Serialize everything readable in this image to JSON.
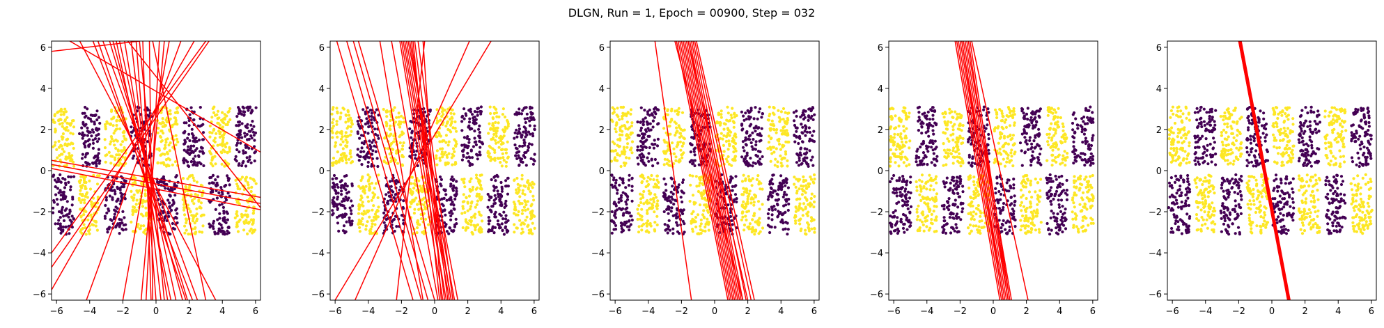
{
  "figure": {
    "title": "DLGN, Run = 1, Epoch = 00900, Step = 032"
  },
  "colors": {
    "class_a": "#fde725",
    "class_b": "#440154",
    "line": "#ff0000",
    "axes": "#000000",
    "background": "#ffffff"
  },
  "chart_data": [
    {
      "type": "scatter",
      "title": "",
      "xlabel": "",
      "ylabel": "",
      "xlim": [
        -6.3,
        6.3
      ],
      "ylim": [
        -6.3,
        6.3
      ],
      "xticks": [
        -6,
        -4,
        -2,
        0,
        2,
        4,
        6
      ],
      "yticks": [
        -6,
        -4,
        -2,
        0,
        2,
        4,
        6
      ],
      "xtick_labels": [
        "−6",
        "−4",
        "−2",
        "0",
        "2",
        "4",
        "6"
      ],
      "ytick_labels": [
        "−6",
        "−4",
        "−2",
        "0",
        "2",
        "4",
        "6"
      ],
      "grid": false,
      "background_points": {
        "x_range": [
          -6.3,
          6.3
        ],
        "y_range": [
          -3.1,
          3.1
        ],
        "stripe_width": 1.57,
        "pattern": "checkerboard",
        "top_row_first_stripe": "class_a",
        "bottom_row_first_stripe": "class_b"
      },
      "lines": [
        {
          "x1": -6.3,
          "y1": 5.8,
          "x2": -1.0,
          "y2": 6.3
        },
        {
          "x1": -6.3,
          "y1": 0.3,
          "x2": 6.3,
          "y2": -1.6
        },
        {
          "x1": -6.3,
          "y1": 0.1,
          "x2": 6.3,
          "y2": -1.9
        },
        {
          "x1": -6.3,
          "y1": -4.7,
          "x2": 3.2,
          "y2": 6.3
        },
        {
          "x1": -6.3,
          "y1": -5.8,
          "x2": 2.3,
          "y2": 6.3
        },
        {
          "x1": -5.2,
          "y1": 6.3,
          "x2": 6.3,
          "y2": 0.9
        },
        {
          "x1": -4.6,
          "y1": 6.3,
          "x2": 3.6,
          "y2": -6.3
        },
        {
          "x1": -3.8,
          "y1": 6.3,
          "x2": 2.2,
          "y2": -6.3
        },
        {
          "x1": -3.2,
          "y1": 6.3,
          "x2": 2.5,
          "y2": -6.3
        },
        {
          "x1": -2.6,
          "y1": 6.3,
          "x2": 1.6,
          "y2": -6.3
        },
        {
          "x1": -2.2,
          "y1": 6.3,
          "x2": 1.2,
          "y2": -6.3
        },
        {
          "x1": -1.9,
          "y1": 6.3,
          "x2": 0.7,
          "y2": -6.3
        },
        {
          "x1": -1.5,
          "y1": 6.3,
          "x2": 0.3,
          "y2": -6.3
        },
        {
          "x1": -1.2,
          "y1": 6.3,
          "x2": 0.0,
          "y2": -6.3
        },
        {
          "x1": -0.8,
          "y1": 6.3,
          "x2": -0.3,
          "y2": -6.3
        },
        {
          "x1": -0.4,
          "y1": 6.3,
          "x2": -0.2,
          "y2": -6.3
        },
        {
          "x1": 0.2,
          "y1": 6.3,
          "x2": -0.6,
          "y2": -6.3
        },
        {
          "x1": 0.8,
          "y1": 6.3,
          "x2": -2.0,
          "y2": -6.3
        },
        {
          "x1": 1.5,
          "y1": 6.3,
          "x2": -4.2,
          "y2": -6.3
        },
        {
          "x1": -3.5,
          "y1": 6.3,
          "x2": 1.8,
          "y2": -6.3
        },
        {
          "x1": -2.4,
          "y1": 6.3,
          "x2": 0.9,
          "y2": -6.3
        },
        {
          "x1": -1.0,
          "y1": 6.3,
          "x2": 0.5,
          "y2": -6.3
        },
        {
          "x1": 0.5,
          "y1": 6.3,
          "x2": -0.9,
          "y2": -6.3
        },
        {
          "x1": -1.7,
          "y1": 6.3,
          "x2": 6.3,
          "y2": -1.8
        },
        {
          "x1": -2.8,
          "y1": 6.3,
          "x2": 1.9,
          "y2": -6.3
        },
        {
          "x1": -0.2,
          "y1": 6.3,
          "x2": 3.0,
          "y2": -6.3
        },
        {
          "x1": 3.0,
          "y1": 6.3,
          "x2": -6.3,
          "y2": -4.0
        },
        {
          "x1": -6.3,
          "y1": 0.5,
          "x2": 6.3,
          "y2": -1.3
        }
      ]
    },
    {
      "type": "scatter",
      "title": "",
      "xlabel": "",
      "ylabel": "",
      "xlim": [
        -6.3,
        6.3
      ],
      "ylim": [
        -6.3,
        6.3
      ],
      "xticks": [
        -6,
        -4,
        -2,
        0,
        2,
        4,
        6
      ],
      "yticks": [
        -6,
        -4,
        -2,
        0,
        2,
        4,
        6
      ],
      "xtick_labels": [
        "−6",
        "−4",
        "−2",
        "0",
        "2",
        "4",
        "6"
      ],
      "ytick_labels": [
        "−6",
        "−4",
        "−2",
        "0",
        "2",
        "4",
        "6"
      ],
      "grid": false,
      "background_points": {
        "x_range": [
          -6.3,
          6.3
        ],
        "y_range": [
          -3.1,
          3.1
        ],
        "stripe_width": 1.57,
        "pattern": "checkerboard",
        "top_row_first_stripe": "class_a",
        "bottom_row_first_stripe": "class_b"
      },
      "lines": [
        {
          "x1": -5.9,
          "y1": 6.3,
          "x2": -1.3,
          "y2": -6.3
        },
        {
          "x1": -5.3,
          "y1": 6.3,
          "x2": -0.8,
          "y2": -6.3
        },
        {
          "x1": -4.9,
          "y1": 6.3,
          "x2": -0.4,
          "y2": -6.3
        },
        {
          "x1": -4.6,
          "y1": 6.3,
          "x2": 0.0,
          "y2": -6.3
        },
        {
          "x1": -2.1,
          "y1": 6.3,
          "x2": 0.5,
          "y2": -6.3
        },
        {
          "x1": -2.0,
          "y1": 6.3,
          "x2": 0.7,
          "y2": -6.3
        },
        {
          "x1": -1.9,
          "y1": 6.3,
          "x2": 0.9,
          "y2": -6.3
        },
        {
          "x1": -1.8,
          "y1": 6.3,
          "x2": 1.0,
          "y2": -6.3
        },
        {
          "x1": -1.7,
          "y1": 6.3,
          "x2": 1.2,
          "y2": -6.3
        },
        {
          "x1": -1.6,
          "y1": 6.3,
          "x2": 1.4,
          "y2": -6.3
        },
        {
          "x1": -1.5,
          "y1": 6.3,
          "x2": 1.0,
          "y2": -6.3
        },
        {
          "x1": -1.4,
          "y1": 6.3,
          "x2": 0.6,
          "y2": -6.3
        },
        {
          "x1": -1.2,
          "y1": 6.3,
          "x2": 0.8,
          "y2": -6.3
        },
        {
          "x1": -1.0,
          "y1": 6.3,
          "x2": 1.1,
          "y2": -6.3
        },
        {
          "x1": -0.7,
          "y1": 6.3,
          "x2": 0.4,
          "y2": -6.3
        },
        {
          "x1": -6.0,
          "y1": -6.3,
          "x2": 3.4,
          "y2": 6.3
        },
        {
          "x1": -4.8,
          "y1": -6.3,
          "x2": 2.1,
          "y2": 6.3
        },
        {
          "x1": -2.3,
          "y1": -6.3,
          "x2": -0.6,
          "y2": 6.3
        },
        {
          "x1": -3.3,
          "y1": 6.3,
          "x2": -0.7,
          "y2": -6.3
        },
        {
          "x1": -2.6,
          "y1": 6.3,
          "x2": 0.2,
          "y2": -6.3
        },
        {
          "x1": -1.3,
          "y1": 6.3,
          "x2": 0.3,
          "y2": -6.3
        }
      ]
    },
    {
      "type": "scatter",
      "title": "",
      "xlabel": "",
      "ylabel": "",
      "xlim": [
        -6.3,
        6.3
      ],
      "ylim": [
        -6.3,
        6.3
      ],
      "xticks": [
        -6,
        -4,
        -2,
        0,
        2,
        4,
        6
      ],
      "yticks": [
        -6,
        -4,
        -2,
        0,
        2,
        4,
        6
      ],
      "xtick_labels": [
        "−6",
        "−4",
        "−2",
        "0",
        "2",
        "4",
        "6"
      ],
      "ytick_labels": [
        "−6",
        "−4",
        "−2",
        "0",
        "2",
        "4",
        "6"
      ],
      "grid": false,
      "background_points": {
        "x_range": [
          -6.3,
          6.3
        ],
        "y_range": [
          -3.1,
          3.1
        ],
        "stripe_width": 1.57,
        "pattern": "checkerboard",
        "top_row_first_stripe": "class_a",
        "bottom_row_first_stripe": "class_b"
      },
      "lines": [
        {
          "x1": -3.6,
          "y1": 6.3,
          "x2": -1.4,
          "y2": -6.3
        },
        {
          "x1": -2.3,
          "y1": 6.3,
          "x2": 0.8,
          "y2": -6.3
        },
        {
          "x1": -2.2,
          "y1": 6.3,
          "x2": 0.9,
          "y2": -6.3
        },
        {
          "x1": -2.1,
          "y1": 6.3,
          "x2": 1.0,
          "y2": -6.3
        },
        {
          "x1": -2.0,
          "y1": 6.3,
          "x2": 1.1,
          "y2": -6.3
        },
        {
          "x1": -1.9,
          "y1": 6.3,
          "x2": 1.2,
          "y2": -6.3
        },
        {
          "x1": -1.8,
          "y1": 6.3,
          "x2": 1.3,
          "y2": -6.3
        },
        {
          "x1": -1.7,
          "y1": 6.3,
          "x2": 1.4,
          "y2": -6.3
        },
        {
          "x1": -1.6,
          "y1": 6.3,
          "x2": 1.5,
          "y2": -6.3
        },
        {
          "x1": -1.5,
          "y1": 6.3,
          "x2": 1.6,
          "y2": -6.3
        },
        {
          "x1": -1.4,
          "y1": 6.3,
          "x2": 1.7,
          "y2": -6.3
        },
        {
          "x1": -1.3,
          "y1": 6.3,
          "x2": 1.9,
          "y2": -6.3
        },
        {
          "x1": -1.2,
          "y1": 6.3,
          "x2": 2.2,
          "y2": -6.3
        },
        {
          "x1": -1.1,
          "y1": 6.3,
          "x2": 2.4,
          "y2": -6.3
        },
        {
          "x1": -1.6,
          "y1": 6.3,
          "x2": 2.0,
          "y2": -6.3
        },
        {
          "x1": -2.4,
          "y1": 6.3,
          "x2": 1.7,
          "y2": -6.3
        }
      ]
    },
    {
      "type": "scatter",
      "title": "",
      "xlabel": "",
      "ylabel": "",
      "xlim": [
        -6.3,
        6.3
      ],
      "ylim": [
        -6.3,
        6.3
      ],
      "xticks": [
        -6,
        -4,
        -2,
        0,
        2,
        4,
        6
      ],
      "yticks": [
        -6,
        -4,
        -2,
        0,
        2,
        4,
        6
      ],
      "xtick_labels": [
        "−6",
        "−4",
        "−2",
        "0",
        "2",
        "4",
        "6"
      ],
      "ytick_labels": [
        "−6",
        "−4",
        "−2",
        "0",
        "2",
        "4",
        "6"
      ],
      "grid": false,
      "background_points": {
        "x_range": [
          -6.3,
          6.3
        ],
        "y_range": [
          -3.1,
          3.1
        ],
        "stripe_width": 1.57,
        "pattern": "checkerboard",
        "top_row_first_stripe": "class_a",
        "bottom_row_first_stripe": "class_b"
      },
      "lines": [
        {
          "x1": -2.2,
          "y1": 6.3,
          "x2": 0.5,
          "y2": -6.3
        },
        {
          "x1": -2.1,
          "y1": 6.3,
          "x2": 0.6,
          "y2": -6.3
        },
        {
          "x1": -2.0,
          "y1": 6.3,
          "x2": 0.7,
          "y2": -6.3
        },
        {
          "x1": -1.9,
          "y1": 6.3,
          "x2": 0.8,
          "y2": -6.3
        },
        {
          "x1": -1.8,
          "y1": 6.3,
          "x2": 0.9,
          "y2": -6.3
        },
        {
          "x1": -1.7,
          "y1": 6.3,
          "x2": 1.0,
          "y2": -6.3
        },
        {
          "x1": -1.6,
          "y1": 6.3,
          "x2": 1.1,
          "y2": -6.3
        },
        {
          "x1": -1.5,
          "y1": 6.3,
          "x2": 0.9,
          "y2": -6.3
        },
        {
          "x1": -1.4,
          "y1": 6.3,
          "x2": 1.0,
          "y2": -6.3
        },
        {
          "x1": -1.3,
          "y1": 6.3,
          "x2": 2.1,
          "y2": -6.3
        },
        {
          "x1": -2.3,
          "y1": 6.3,
          "x2": 0.4,
          "y2": -6.3
        },
        {
          "x1": -1.9,
          "y1": 6.3,
          "x2": 0.6,
          "y2": -6.3
        }
      ]
    },
    {
      "type": "scatter",
      "title": "",
      "xlabel": "",
      "ylabel": "",
      "xlim": [
        -6.3,
        6.3
      ],
      "ylim": [
        -6.3,
        6.3
      ],
      "xticks": [
        -6,
        -4,
        -2,
        0,
        2,
        4,
        6
      ],
      "yticks": [
        -6,
        -4,
        -2,
        0,
        2,
        4,
        6
      ],
      "xtick_labels": [
        "−6",
        "−4",
        "−2",
        "0",
        "2",
        "4",
        "6"
      ],
      "ytick_labels": [
        "−6",
        "−4",
        "−2",
        "0",
        "2",
        "4",
        "6"
      ],
      "grid": false,
      "background_points": {
        "x_range": [
          -6.3,
          6.3
        ],
        "y_range": [
          -3.1,
          3.1
        ],
        "stripe_width": 1.57,
        "pattern": "checkerboard",
        "top_row_first_stripe": "class_a",
        "bottom_row_first_stripe": "class_b"
      },
      "lines": [
        {
          "x1": -2.0,
          "y1": 6.3,
          "x2": 1.0,
          "y2": -6.3
        },
        {
          "x1": -1.95,
          "y1": 6.3,
          "x2": 1.0,
          "y2": -6.3
        },
        {
          "x1": -1.9,
          "y1": 6.3,
          "x2": 1.05,
          "y2": -6.3
        },
        {
          "x1": -1.85,
          "y1": 6.3,
          "x2": 1.1,
          "y2": -6.3
        },
        {
          "x1": -2.0,
          "y1": 6.3,
          "x2": 0.95,
          "y2": -6.3
        }
      ]
    }
  ]
}
